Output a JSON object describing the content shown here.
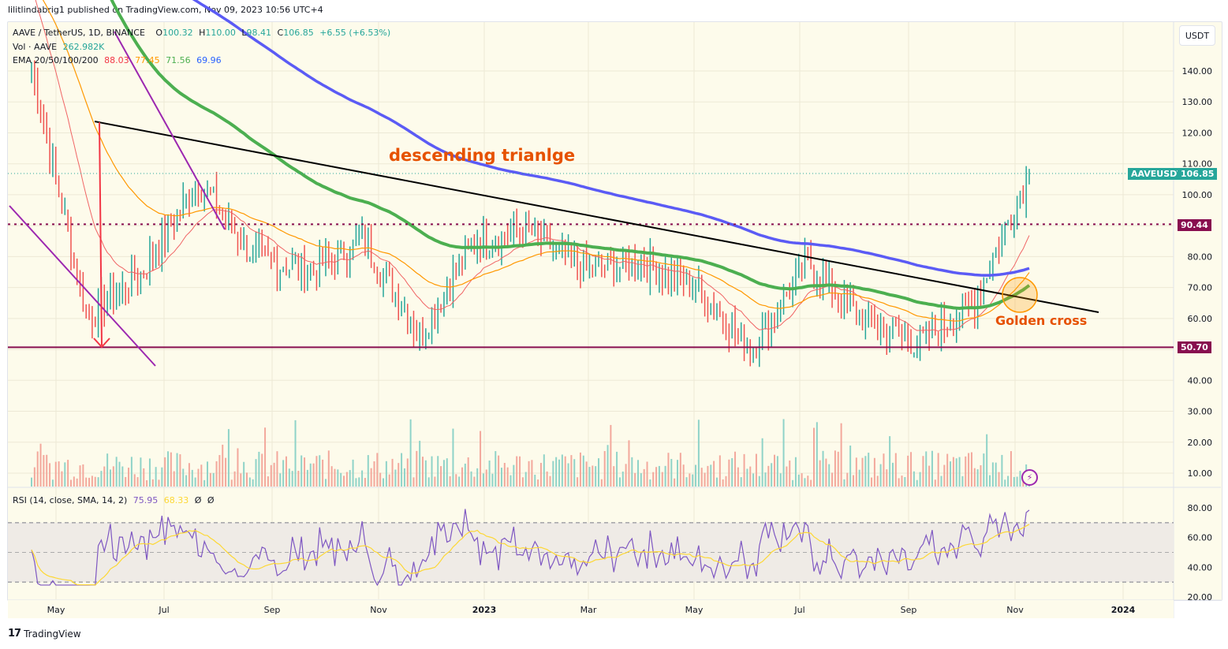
{
  "header": {
    "published": "lilitlindabrig1 published on TradingView.com, Nov 09, 2023 10:56 UTC+4"
  },
  "legend": {
    "symbol": "AAVE / TetherUS, 1D, BINANCE",
    "open_label": "O",
    "open": "100.32",
    "high_label": "H",
    "high": "110.00",
    "low_label": "L",
    "low": "98.41",
    "close_label": "C",
    "close": "106.85",
    "change": "+6.55 (+6.53%)",
    "vol_label": "Vol · AAVE",
    "vol_value": "262.982K",
    "ema_label": "EMA 20/50/100/200",
    "ema20": "88.03",
    "ema50": "77.45",
    "ema100": "71.56",
    "ema200": "69.96",
    "rsi_label": "RSI (14, close, SMA, 14, 2)",
    "rsi_value": "75.95",
    "rsi_sma": "68.33",
    "rsi_extra1": "Ø",
    "rsi_extra2": "Ø"
  },
  "currency_button": "USDT",
  "price_tags": {
    "last_symbol": "AAVEUSDT",
    "last_price": "106.85",
    "resistance": "90.44",
    "support": "50.70"
  },
  "annotations": {
    "pattern_label": "descending trianlge",
    "cross_label": "Golden cross"
  },
  "footer": {
    "brand": "TradingView",
    "logo": "17"
  },
  "colors": {
    "up": "#26a69a",
    "down": "#ef5350",
    "ema20": "#f06464",
    "ema50": "#ff9800",
    "ema100": "#4caf50",
    "ema200": "#5b5bf5",
    "trendline": "#000000",
    "channel": "#9c27b0",
    "level": "#880e4f",
    "annotation": "#e65100",
    "rsi": "#7e57c2",
    "rsi_sma": "#fdd835"
  },
  "chart_data": {
    "type": "line",
    "title": "AAVE / TetherUS, 1D, BINANCE",
    "x_ticks": [
      "May",
      "Jul",
      "Sep",
      "Nov",
      "2023",
      "Mar",
      "May",
      "Jul",
      "Sep",
      "Nov",
      "2024"
    ],
    "price_axis": {
      "ticks": [
        10,
        20,
        30,
        40,
        50.7,
        60,
        70,
        80,
        90.44,
        100,
        110,
        120,
        130,
        140
      ],
      "ylim": [
        5,
        150
      ],
      "unit": "USDT"
    },
    "rsi_axis": {
      "ticks": [
        20,
        40,
        60,
        80
      ],
      "bands": [
        30,
        50,
        70
      ]
    },
    "ohlc_last": {
      "open": 100.32,
      "high": 110.0,
      "low": 98.41,
      "close": 106.85,
      "change": 6.55,
      "change_pct": 6.53
    },
    "series": [
      {
        "name": "Price (approx close)",
        "x": [
          "2022-05",
          "2022-06",
          "2022-07",
          "2022-08",
          "2022-09",
          "2022-10",
          "2022-11",
          "2022-12",
          "2023-01",
          "2023-02",
          "2023-03",
          "2023-04",
          "2023-05",
          "2023-06",
          "2023-07",
          "2023-08",
          "2023-09",
          "2023-10",
          "2023-11"
        ],
        "values": [
          140,
          60,
          75,
          105,
          80,
          75,
          85,
          55,
          85,
          88,
          75,
          78,
          70,
          50,
          78,
          60,
          52,
          65,
          107
        ]
      },
      {
        "name": "EMA 20",
        "last": 88.03
      },
      {
        "name": "EMA 50",
        "last": 77.45
      },
      {
        "name": "EMA 100",
        "last": 71.56
      },
      {
        "name": "EMA 200",
        "last": 69.96
      },
      {
        "name": "RSI 14",
        "last": 75.95
      },
      {
        "name": "RSI SMA 14",
        "last": 68.33
      }
    ],
    "horizontal_levels": [
      50.7,
      90.44
    ],
    "annotations": [
      "descending trianlge",
      "Golden cross"
    ]
  }
}
